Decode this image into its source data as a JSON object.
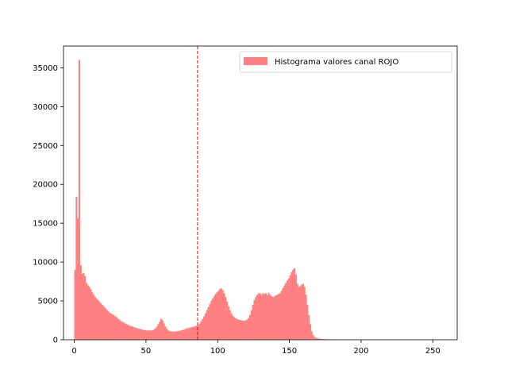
{
  "chart_data": {
    "type": "bar",
    "title": "",
    "xlabel": "",
    "ylabel": "",
    "xlim": [
      -7.5,
      267
    ],
    "ylim": [
      0,
      37800
    ],
    "x_ticks": [
      0,
      50,
      100,
      150,
      200,
      250
    ],
    "y_ticks": [
      0,
      5000,
      10000,
      15000,
      20000,
      25000,
      30000,
      35000
    ],
    "grid": false,
    "legend_position": "top-right",
    "series": [
      {
        "name": "Histograma valores canal ROJO",
        "color": "#ff8080",
        "bin_width": 1,
        "x_start": 0,
        "values": [
          9000,
          18400,
          15600,
          36000,
          9600,
          8500,
          8600,
          8200,
          7300,
          7000,
          6800,
          6500,
          6100,
          5800,
          5500,
          5300,
          5100,
          4900,
          4700,
          4500,
          4300,
          4100,
          3900,
          3700,
          3500,
          3400,
          3300,
          3200,
          3000,
          2900,
          2700,
          2600,
          2400,
          2300,
          2200,
          2100,
          2000,
          1900,
          1800,
          1750,
          1700,
          1600,
          1550,
          1500,
          1450,
          1400,
          1350,
          1300,
          1250,
          1250,
          1200,
          1200,
          1200,
          1200,
          1250,
          1300,
          1450,
          1700,
          2000,
          2300,
          2700,
          2500,
          2100,
          1700,
          1400,
          1200,
          1100,
          1100,
          1050,
          1050,
          1050,
          1100,
          1100,
          1150,
          1200,
          1250,
          1300,
          1400,
          1450,
          1500,
          1550,
          1600,
          1650,
          1700,
          1750,
          1800,
          1900,
          2100,
          2400,
          2700,
          3000,
          3400,
          3800,
          4200,
          4600,
          5000,
          5300,
          5600,
          5900,
          6100,
          6300,
          6500,
          6600,
          6400,
          6000,
          5500,
          4900,
          4300,
          3800,
          3400,
          3100,
          2900,
          2750,
          2650,
          2600,
          2550,
          2500,
          2450,
          2450,
          2500,
          2600,
          2800,
          3200,
          3800,
          4500,
          5100,
          5500,
          5800,
          5950,
          6000,
          5800,
          6000,
          5900,
          6000,
          5700,
          6050,
          5800,
          5600,
          5500,
          5600,
          5700,
          5800,
          5900,
          6000,
          6300,
          6700,
          7000,
          7300,
          7600,
          7900,
          8300,
          8700,
          9000,
          9200,
          8400,
          7200,
          6800,
          6900,
          7100,
          7200,
          6800,
          5800,
          4500,
          3200,
          2000,
          1100,
          600,
          350,
          250,
          200,
          150,
          120,
          100,
          80,
          70,
          60,
          50,
          40,
          35,
          30,
          25,
          20,
          15,
          10,
          8,
          6,
          5,
          4,
          3,
          2,
          2,
          1,
          1,
          1,
          1,
          0,
          0,
          0,
          0,
          0,
          0,
          0,
          0,
          0,
          0,
          0,
          0,
          0,
          0,
          0,
          0,
          0,
          0,
          0,
          0,
          0,
          0,
          0,
          0,
          0,
          0,
          0,
          0,
          0,
          0,
          0,
          0,
          0,
          0,
          0,
          0,
          0,
          0,
          0,
          0,
          0,
          0,
          0,
          0,
          0,
          0,
          0,
          0,
          0,
          0,
          0,
          0,
          0,
          0,
          0,
          0,
          0,
          0,
          0,
          0,
          0,
          0,
          0,
          0,
          0,
          0,
          0,
          0,
          0,
          0,
          0,
          0,
          0,
          0,
          0,
          0,
          0,
          0,
          0
        ]
      }
    ],
    "annotations": [
      {
        "type": "vline",
        "x": 86,
        "color": "#ff0000",
        "style": "dashed"
      }
    ]
  }
}
